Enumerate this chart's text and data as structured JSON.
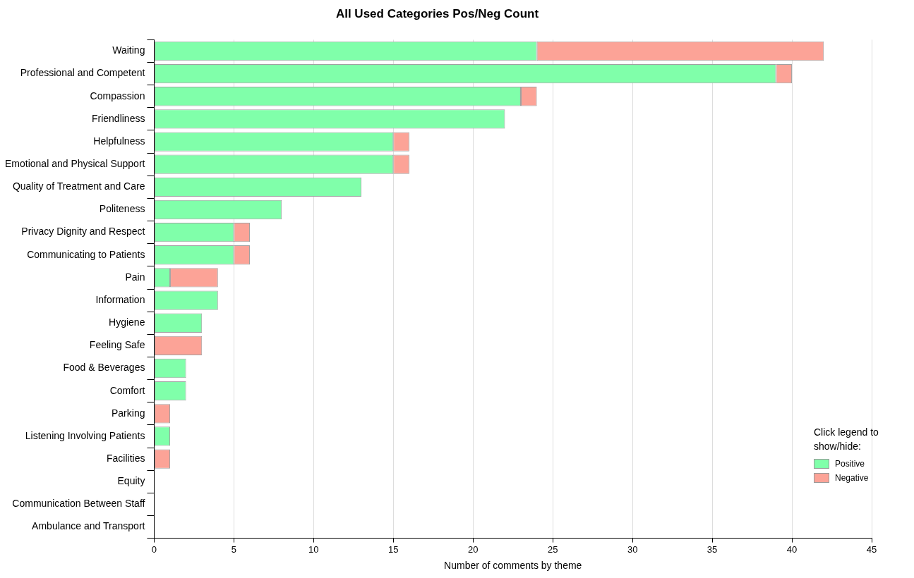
{
  "chart_data": {
    "type": "bar",
    "orientation": "horizontal",
    "stacked": true,
    "title": "All Used Categories Pos/Neg Count",
    "xlabel": "Number of comments by theme",
    "legend_title": "Click legend to show/hide:",
    "categories": [
      "Waiting",
      "Professional and Competent",
      "Compassion",
      "Friendliness",
      "Helpfulness",
      "Emotional and Physical Support",
      "Quality of Treatment and Care",
      "Politeness",
      "Privacy Dignity and Respect",
      "Communicating to Patients",
      "Pain",
      "Information",
      "Hygiene",
      "Feeling Safe",
      "Food & Beverages",
      "Comfort",
      "Parking",
      "Listening Involving Patients",
      "Facilities",
      "Equity",
      "Communication Between Staff",
      "Ambulance and Transport"
    ],
    "series": [
      {
        "name": "Positive",
        "color": "#80ffaa",
        "values": [
          24,
          39,
          23,
          22,
          15,
          15,
          13,
          8,
          5,
          5,
          1,
          4,
          3,
          0,
          2,
          2,
          0,
          1,
          0,
          0,
          0,
          0
        ]
      },
      {
        "name": "Negative",
        "color": "#fca397",
        "values": [
          18,
          1,
          1,
          0,
          1,
          1,
          0,
          0,
          1,
          1,
          3,
          0,
          0,
          3,
          0,
          0,
          1,
          0,
          1,
          0,
          0,
          0
        ]
      }
    ],
    "xlim": [
      0,
      45
    ],
    "xticks": [
      0,
      5,
      10,
      15,
      20,
      25,
      30,
      35,
      40,
      45
    ],
    "grid": "x",
    "legend": "bottom right"
  }
}
